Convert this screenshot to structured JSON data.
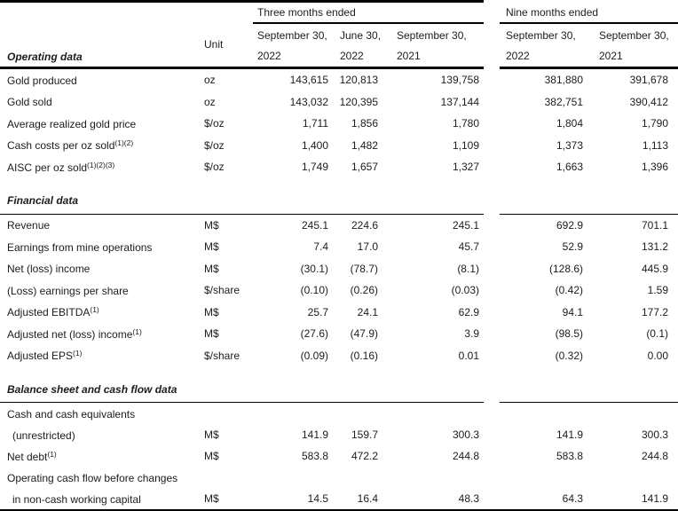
{
  "page": {
    "background": "#ffffff",
    "text_color": "#1c1c1c",
    "line_color": "#000000"
  },
  "table": {
    "groups": [
      {
        "label": "Three months ended"
      },
      {
        "label": "Nine months ended"
      }
    ],
    "unit_header": "Unit",
    "columns": [
      {
        "group": "Three months ended",
        "line1": "September 30,",
        "line2": "2022"
      },
      {
        "group": "Three months ended",
        "line1": "June 30,",
        "line2": "2022"
      },
      {
        "group": "Three months ended",
        "line1": "September 30,",
        "line2": "2021"
      },
      {
        "group": "Nine months ended",
        "line1": "September 30,",
        "line2": "2022"
      },
      {
        "group": "Nine months ended",
        "line1": "September 30,",
        "line2": "2021"
      }
    ],
    "sections": [
      {
        "title": "Operating data",
        "rows": [
          {
            "label": "Gold produced",
            "sup": "",
            "indent": false,
            "unit": "oz",
            "values": [
              "143,615",
              "120,813",
              "139,758",
              "381,880",
              "391,678"
            ]
          },
          {
            "label": "Gold sold",
            "sup": "",
            "indent": false,
            "unit": "oz",
            "values": [
              "143,032",
              "120,395",
              "137,144",
              "382,751",
              "390,412"
            ]
          },
          {
            "label": "Average realized gold price",
            "sup": "",
            "indent": false,
            "unit": "$/oz",
            "values": [
              "1,711",
              "1,856",
              "1,780",
              "1,804",
              "1,790"
            ]
          },
          {
            "label": "Cash costs per oz sold",
            "sup": "(1)(2)",
            "indent": false,
            "unit": "$/oz",
            "values": [
              "1,400",
              "1,482",
              "1,109",
              "1,373",
              "1,113"
            ]
          },
          {
            "label": "AISC per oz sold",
            "sup": "(1)(2)(3)",
            "indent": false,
            "unit": "$/oz",
            "values": [
              "1,749",
              "1,657",
              "1,327",
              "1,663",
              "1,396"
            ]
          }
        ]
      },
      {
        "title": "Financial data",
        "rows": [
          {
            "label": "Revenue",
            "sup": "",
            "indent": false,
            "unit": "M$",
            "values": [
              "245.1",
              "224.6",
              "245.1",
              "692.9",
              "701.1"
            ]
          },
          {
            "label": "Earnings from mine operations",
            "sup": "",
            "indent": false,
            "unit": "M$",
            "values": [
              "7.4",
              "17.0",
              "45.7",
              "52.9",
              "131.2"
            ]
          },
          {
            "label": "Net (loss) income",
            "sup": "",
            "indent": false,
            "unit": "M$",
            "values": [
              "(30.1)",
              "(78.7)",
              "(8.1)",
              "(128.6)",
              "445.9"
            ]
          },
          {
            "label": "(Loss) earnings per share",
            "sup": "",
            "indent": false,
            "unit": "$/share",
            "values": [
              "(0.10)",
              "(0.26)",
              "(0.03)",
              "(0.42)",
              "1.59"
            ]
          },
          {
            "label": "Adjusted EBITDA",
            "sup": "(1)",
            "indent": false,
            "unit": "M$",
            "values": [
              "25.7",
              "24.1",
              "62.9",
              "94.1",
              "177.2"
            ]
          },
          {
            "label": "Adjusted net (loss) income",
            "sup": "(1)",
            "indent": false,
            "unit": "M$",
            "values": [
              "(27.6)",
              "(47.9)",
              "3.9",
              "(98.5)",
              "(0.1)"
            ]
          },
          {
            "label": "Adjusted EPS",
            "sup": "(1)",
            "indent": false,
            "unit": "$/share",
            "values": [
              "(0.09)",
              "(0.16)",
              "0.01",
              "(0.32)",
              "0.00"
            ]
          }
        ]
      },
      {
        "title": "Balance sheet and cash flow data",
        "rows": [
          {
            "label": "Cash and cash equivalents",
            "sup": "",
            "indent": false,
            "unit": "",
            "values": [
              "",
              "",
              "",
              "",
              ""
            ]
          },
          {
            "label": "(unrestricted)",
            "sup": "",
            "indent": true,
            "unit": "M$",
            "values": [
              "141.9",
              "159.7",
              "300.3",
              "141.9",
              "300.3"
            ]
          },
          {
            "label": "Net debt",
            "sup": "(1)",
            "indent": false,
            "unit": "M$",
            "values": [
              "583.8",
              "472.2",
              "244.8",
              "583.8",
              "244.8"
            ]
          },
          {
            "label": "Operating cash flow before changes",
            "sup": "",
            "indent": false,
            "unit": "",
            "values": [
              "",
              "",
              "",
              "",
              ""
            ]
          },
          {
            "label": "in non-cash working capital",
            "sup": "",
            "indent": true,
            "unit": "M$",
            "values": [
              "14.5",
              "16.4",
              "48.3",
              "64.3",
              "141.9"
            ]
          }
        ]
      }
    ]
  }
}
